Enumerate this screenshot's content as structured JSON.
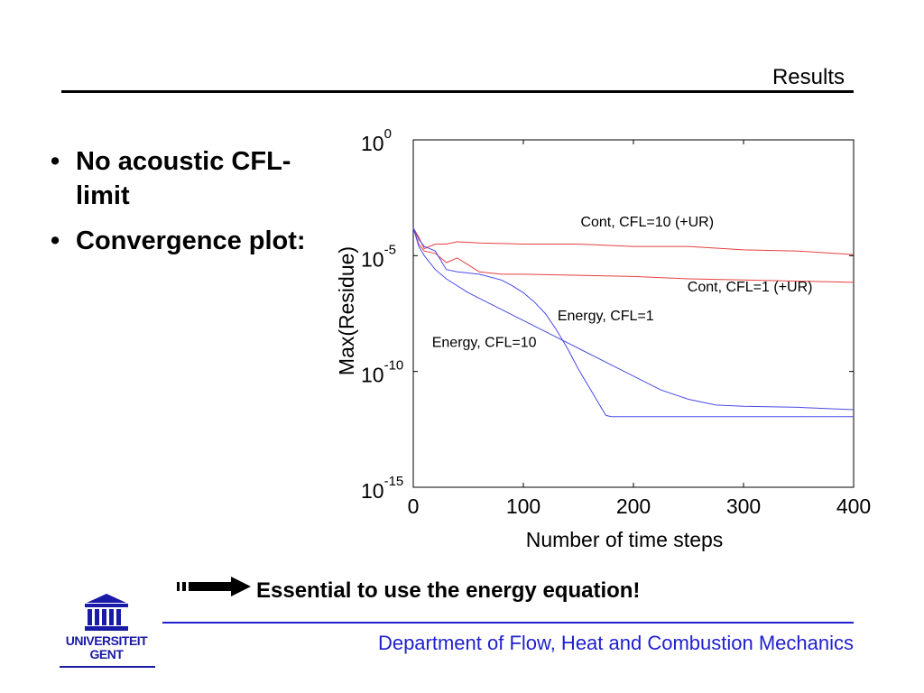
{
  "slide": {
    "title": "Results"
  },
  "bullets": [
    {
      "marker": "•",
      "text": "No acoustic CFL-limit"
    },
    {
      "marker": "•",
      "text": "Convergence plot:"
    }
  ],
  "callout": {
    "text": "Essential to use the energy equation!"
  },
  "footer": {
    "text": "Department of Flow, Heat and Combustion Mechanics"
  },
  "logo": {
    "line1": "UNIVERSITEIT",
    "line2": "GENT"
  },
  "colors": {
    "red_series": "#e84040",
    "blue_series": "#4a4ae8",
    "footer_blue": "#1f1fcf"
  },
  "chart_data": {
    "type": "line",
    "title": "",
    "xlabel": "Number of time steps",
    "ylabel": "Max(Residue)",
    "xlim": [
      0,
      400
    ],
    "ylim_exponent": [
      -15,
      0
    ],
    "yscale": "log",
    "x_ticks": [
      0,
      100,
      200,
      300,
      400
    ],
    "y_tick_base": "10",
    "y_tick_exponents": [
      "0",
      "-5",
      "-10",
      "-15"
    ],
    "y_tick_values": [
      0,
      -5,
      -10,
      -15
    ],
    "grid": false,
    "series": [
      {
        "name": "Cont, CFL=10 (+UR)",
        "color": "red",
        "x": [
          0,
          5,
          10,
          20,
          30,
          40,
          60,
          100,
          150,
          200,
          250,
          300,
          350,
          400
        ],
        "log10_y": [
          -3.8,
          -4.2,
          -4.7,
          -4.5,
          -4.5,
          -4.4,
          -4.45,
          -4.5,
          -4.5,
          -4.6,
          -4.6,
          -4.75,
          -4.8,
          -4.95
        ]
      },
      {
        "name": "Cont, CFL=1 (+UR)",
        "color": "red",
        "x": [
          0,
          5,
          10,
          20,
          30,
          40,
          50,
          60,
          80,
          100,
          150,
          200,
          250,
          300,
          350,
          400
        ],
        "log10_y": [
          -3.8,
          -4.5,
          -4.8,
          -4.9,
          -5.3,
          -5.1,
          -5.4,
          -5.7,
          -5.8,
          -5.8,
          -5.85,
          -5.9,
          -6.0,
          -6.05,
          -6.1,
          -6.15
        ]
      },
      {
        "name": "Energy, CFL=1",
        "color": "blue",
        "x": [
          0,
          5,
          10,
          20,
          30,
          40,
          60,
          80,
          90,
          100,
          110,
          120,
          130,
          140,
          150,
          160,
          170,
          175,
          180,
          200,
          250,
          300,
          350,
          400
        ],
        "log10_y": [
          -3.8,
          -4.3,
          -4.6,
          -4.8,
          -5.6,
          -5.7,
          -5.8,
          -6.05,
          -6.3,
          -6.6,
          -7.0,
          -7.5,
          -8.2,
          -9.0,
          -9.9,
          -10.7,
          -11.5,
          -11.9,
          -11.95,
          -11.95,
          -11.95,
          -11.95,
          -11.95,
          -11.95
        ]
      },
      {
        "name": "Energy, CFL=10",
        "color": "blue",
        "x": [
          0,
          5,
          10,
          20,
          30,
          50,
          75,
          100,
          125,
          150,
          175,
          200,
          225,
          250,
          275,
          300,
          350,
          400
        ],
        "log10_y": [
          -3.8,
          -4.6,
          -5.0,
          -5.6,
          -6.0,
          -6.6,
          -7.2,
          -7.8,
          -8.4,
          -9.0,
          -9.6,
          -10.2,
          -10.8,
          -11.2,
          -11.45,
          -11.5,
          -11.55,
          -11.65
        ]
      }
    ],
    "annotations": [
      {
        "text": "Cont, CFL=10 (+UR)",
        "x": 152,
        "log10_y": -3.55
      },
      {
        "text": "Cont, CFL=1 (+UR)",
        "x": 249,
        "log10_y": -6.35
      },
      {
        "text": "Energy, CFL=1",
        "x": 131,
        "log10_y": -7.6
      },
      {
        "text": "Energy, CFL=10",
        "x": 17,
        "log10_y": -8.75
      }
    ]
  }
}
